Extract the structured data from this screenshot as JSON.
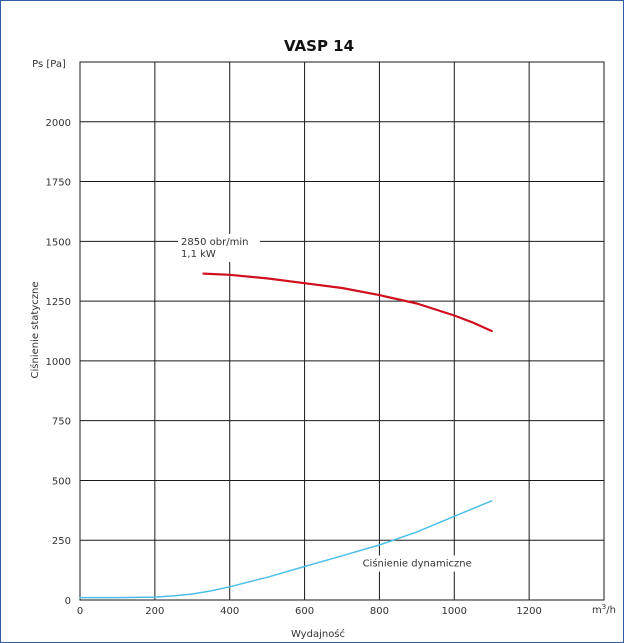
{
  "chart_data": {
    "type": "line",
    "title": "VASP 14",
    "xlabel": "Wydajność",
    "ylabel": "Ciśnienie statyczne",
    "y_unit_label": "Ps [Pa]",
    "x_unit_label": "m3/h",
    "xlim": [
      0,
      1400
    ],
    "ylim": [
      0,
      2250
    ],
    "x_ticks": [
      0,
      200,
      400,
      600,
      800,
      1000,
      1200
    ],
    "y_ticks": [
      0,
      250,
      500,
      750,
      1000,
      1250,
      1500,
      1750,
      2000
    ],
    "grid": true,
    "annotations": [
      {
        "lines": [
          "2850 obr/min",
          "1,1 kW"
        ],
        "x": 270,
        "y": 1485
      },
      {
        "lines": [
          "Ciśnienie dynamiczne"
        ],
        "x": 755,
        "y": 140
      }
    ],
    "series": [
      {
        "color": "#d0101e",
        "x": [
          330,
          400,
          500,
          600,
          700,
          800,
          900,
          1000,
          1050,
          1100
        ],
        "y": [
          1365,
          1360,
          1345,
          1325,
          1305,
          1275,
          1240,
          1190,
          1160,
          1125
        ]
      },
      {
        "color": "#4bbfe8",
        "x": [
          0,
          100,
          200,
          250,
          300,
          350,
          400,
          500,
          600,
          700,
          800,
          900,
          1000,
          1100
        ],
        "y": [
          10,
          10,
          12,
          17,
          25,
          38,
          55,
          95,
          140,
          185,
          230,
          285,
          350,
          415
        ]
      }
    ]
  }
}
